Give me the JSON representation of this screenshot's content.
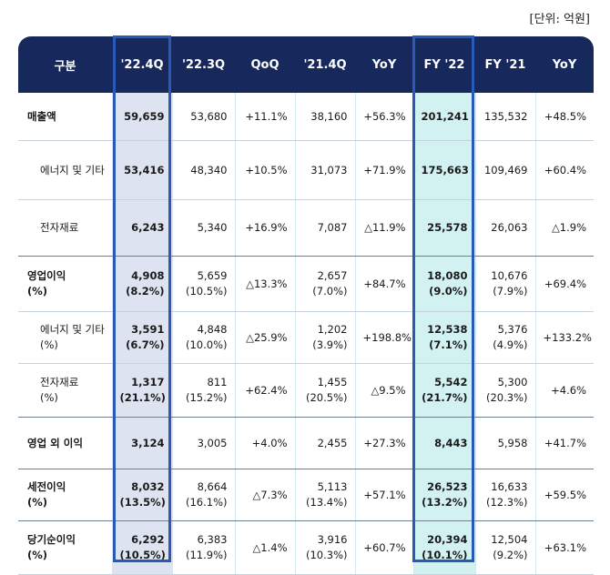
{
  "unit_label": "[단위: 억원]",
  "header": [
    "구분",
    "'22.4Q",
    "'22.3Q",
    "QoQ",
    "'21.4Q",
    "YoY",
    "FY '22",
    "FY '21",
    "YoY"
  ],
  "rows": [
    {
      "label": [
        "매출액"
      ],
      "sub": false,
      "major": false,
      "cells": [
        [
          "59,659"
        ],
        [
          "53,680"
        ],
        [
          "+11.1%"
        ],
        [
          "38,160"
        ],
        [
          "+56.3%"
        ],
        [
          "201,241"
        ],
        [
          "135,532"
        ],
        [
          "+48.5%"
        ]
      ]
    },
    {
      "label": [
        "에너지 및 기타"
      ],
      "sub": true,
      "major": false,
      "cells": [
        [
          "53,416"
        ],
        [
          "48,340"
        ],
        [
          "+10.5%"
        ],
        [
          "31,073"
        ],
        [
          "+71.9%"
        ],
        [
          "175,663"
        ],
        [
          "109,469"
        ],
        [
          "+60.4%"
        ]
      ]
    },
    {
      "label": [
        "전자재료"
      ],
      "sub": true,
      "major": true,
      "cells": [
        [
          "6,243"
        ],
        [
          "5,340"
        ],
        [
          "+16.9%"
        ],
        [
          "7,087"
        ],
        [
          "△11.9%"
        ],
        [
          "25,578"
        ],
        [
          "26,063"
        ],
        [
          "△1.9%"
        ]
      ]
    },
    {
      "label": [
        "영업이익",
        "(%)"
      ],
      "sub": false,
      "major": false,
      "cells": [
        [
          "4,908",
          "(8.2%)"
        ],
        [
          "5,659",
          "(10.5%)"
        ],
        [
          "△13.3%"
        ],
        [
          "2,657",
          "(7.0%)"
        ],
        [
          "+84.7%"
        ],
        [
          "18,080",
          "(9.0%)"
        ],
        [
          "10,676",
          "(7.9%)"
        ],
        [
          "+69.4%"
        ]
      ]
    },
    {
      "label": [
        "에너지 및 기타",
        "(%)"
      ],
      "sub": true,
      "major": false,
      "cells": [
        [
          "3,591",
          "(6.7%)"
        ],
        [
          "4,848",
          "(10.0%)"
        ],
        [
          "△25.9%"
        ],
        [
          "1,202",
          "(3.9%)"
        ],
        [
          "+198.8%"
        ],
        [
          "12,538",
          "(7.1%)"
        ],
        [
          "5,376",
          "(4.9%)"
        ],
        [
          "+133.2%"
        ]
      ]
    },
    {
      "label": [
        "전자재료",
        "(%)"
      ],
      "sub": true,
      "major": true,
      "cells": [
        [
          "1,317",
          "(21.1%)"
        ],
        [
          "811",
          "(15.2%)"
        ],
        [
          "+62.4%"
        ],
        [
          "1,455",
          "(20.5%)"
        ],
        [
          "△9.5%"
        ],
        [
          "5,542",
          "(21.7%)"
        ],
        [
          "5,300",
          "(20.3%)"
        ],
        [
          "+4.6%"
        ]
      ]
    },
    {
      "label": [
        "영업 외 이익"
      ],
      "sub": false,
      "major": true,
      "cells": [
        [
          "3,124"
        ],
        [
          "3,005"
        ],
        [
          "+4.0%"
        ],
        [
          "2,455"
        ],
        [
          "+27.3%"
        ],
        [
          "8,443"
        ],
        [
          "5,958"
        ],
        [
          "+41.7%"
        ]
      ]
    },
    {
      "label": [
        "세전이익",
        "(%)"
      ],
      "sub": false,
      "major": true,
      "cells": [
        [
          "8,032",
          "(13.5%)"
        ],
        [
          "8,664",
          "(16.1%)"
        ],
        [
          "△7.3%"
        ],
        [
          "5,113",
          "(13.4%)"
        ],
        [
          "+57.1%"
        ],
        [
          "26,523",
          "(13.2%)"
        ],
        [
          "16,633",
          "(12.3%)"
        ],
        [
          "+59.5%"
        ]
      ]
    },
    {
      "label": [
        "당기순이익",
        "(%)"
      ],
      "sub": false,
      "major": false,
      "cells": [
        [
          "6,292",
          "(10.5%)"
        ],
        [
          "6,383",
          "(11.9%)"
        ],
        [
          "△1.4%"
        ],
        [
          "3,916",
          "(10.3%)"
        ],
        [
          "+60.7%"
        ],
        [
          "20,394",
          "(10.1%)"
        ],
        [
          "12,504",
          "(9.2%)"
        ],
        [
          "+63.1%"
        ]
      ]
    }
  ],
  "colors": {
    "header_bg": "#17285c",
    "q_highlight": "#dde3f1",
    "fy_highlight": "#d2f2f2",
    "box_border": "#2a5ab8"
  }
}
